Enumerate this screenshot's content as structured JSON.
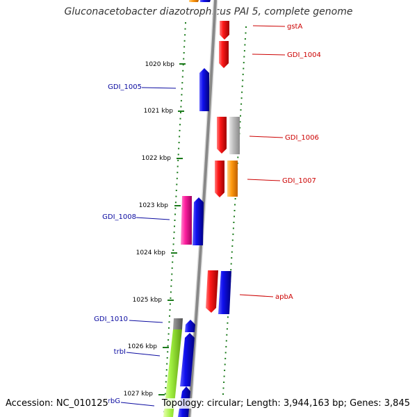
{
  "title": "Gluconacetobacter diazotrophicus PAI 5, complete genome",
  "footer": {
    "accession": "Accession: NC_010125",
    "summary": "Topology: circular; Length: 3,944,163 bp; Genes: 3,845"
  },
  "colors": {
    "backbone": "#888888",
    "tick": "#1a7a1a",
    "left_label": "#0a0aa0",
    "right_label": "#cc0000"
  },
  "scale_labels": [
    "1020 kbp",
    "1021 kbp",
    "1022 kbp",
    "1023 kbp",
    "1024 kbp",
    "1025 kbp",
    "1026 kbp",
    "1027 kbp"
  ],
  "gene_labels": {
    "left": [
      "GDI_1005",
      "GDI_1008",
      "GDI_1010",
      "trbI",
      "trbG"
    ],
    "right": [
      "gstA",
      "GDI_1004",
      "GDI_1006",
      "GDI_1007",
      "apbA"
    ]
  },
  "legend_icons": [
    "red-gene-arrow",
    "blue-gene-arrow",
    "grey-gene-arrow",
    "orange-gene-arrow",
    "magenta-gene-arrow",
    "green-gene-arrow"
  ]
}
